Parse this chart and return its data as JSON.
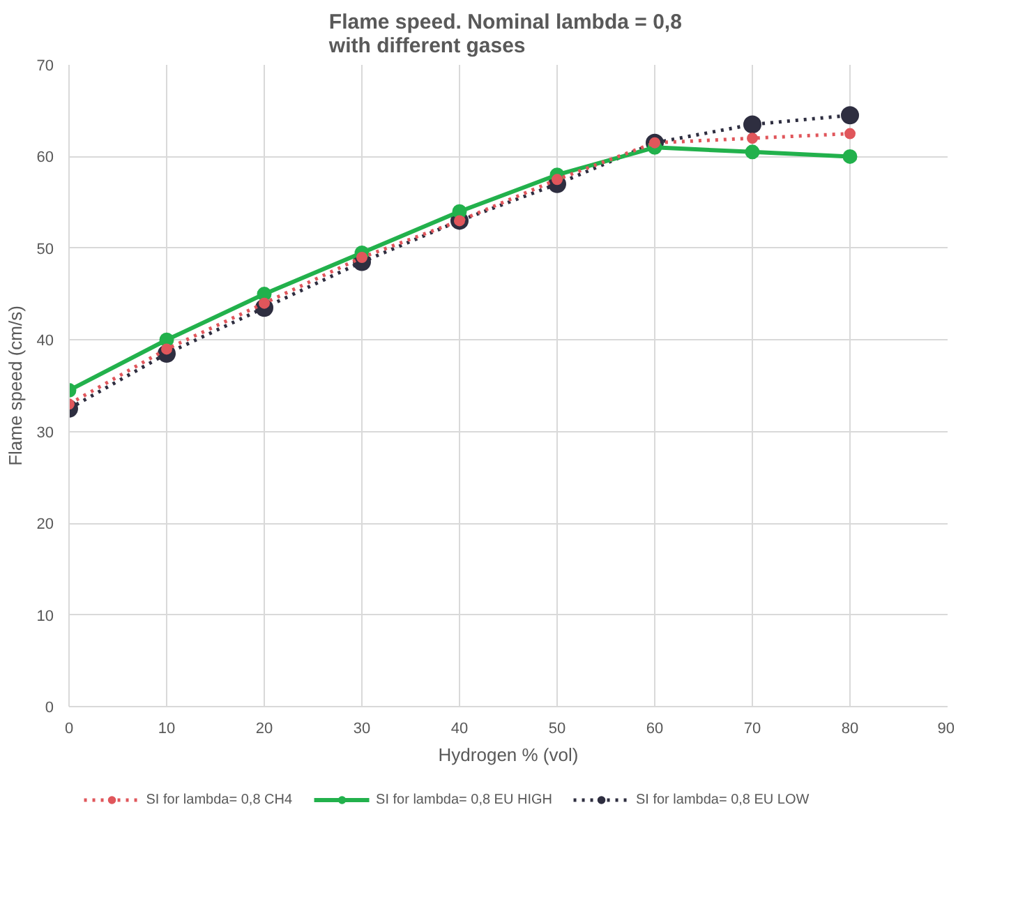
{
  "chart_data": {
    "type": "line",
    "title": "Flame speed. Nominal lambda  = 0,8\nwith different gases",
    "xlabel": "Hydrogen % (vol)",
    "ylabel": "Flame speed (cm/s)",
    "x": [
      0,
      10,
      20,
      30,
      40,
      50,
      60,
      70,
      80
    ],
    "series": [
      {
        "name": "SI for lambda= 0,8 CH4",
        "color": "#e0565b",
        "line_style": "dotted",
        "values": [
          33,
          39,
          44,
          49,
          53,
          57.5,
          61.5,
          62,
          62.5
        ]
      },
      {
        "name": "SI for lambda= 0,8 EU HIGH",
        "color": "#22b14c",
        "line_style": "solid",
        "values": [
          34.5,
          40,
          45,
          49.5,
          54,
          58,
          61,
          60.5,
          60
        ]
      },
      {
        "name": "SI for lambda= 0,8 EU LOW",
        "color": "#2e2e40",
        "line_style": "dotted",
        "values": [
          32.5,
          38.5,
          43.5,
          48.5,
          53,
          57,
          61.5,
          63.5,
          64.5
        ]
      }
    ],
    "xlim": [
      0,
      90
    ],
    "ylim": [
      0,
      70
    ],
    "xticks": [
      0,
      10,
      20,
      30,
      40,
      50,
      60,
      70,
      80,
      90
    ],
    "yticks": [
      0,
      10,
      20,
      30,
      40,
      50,
      60,
      70
    ],
    "grid": true,
    "legend": "bottom",
    "marker": "circle"
  }
}
